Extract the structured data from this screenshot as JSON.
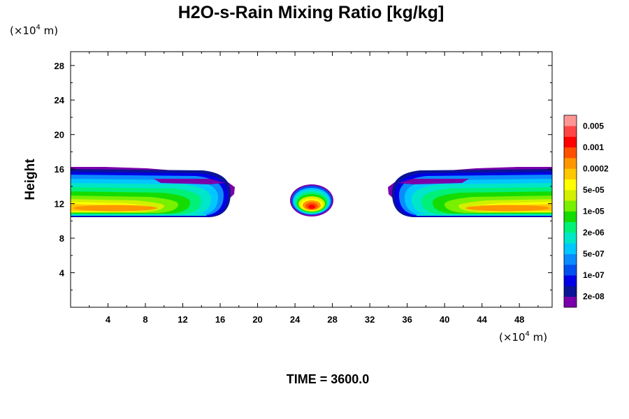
{
  "chart_data": {
    "type": "contour",
    "title": "H2O-s-Rain Mixing Ratio [kg/kg]",
    "ylabel": "Height",
    "xlabel": "",
    "x_unit": {
      "prefix": "(×10",
      "exp": "4",
      "suffix": " m)"
    },
    "y_unit": {
      "prefix": "(×10",
      "exp": "4",
      "suffix": " m)"
    },
    "xlim": [
      0,
      51.5
    ],
    "ylim": [
      0,
      29.6
    ],
    "xticks": [
      4,
      8,
      12,
      16,
      20,
      24,
      28,
      32,
      36,
      40,
      44,
      48
    ],
    "yticks": [
      4,
      8,
      12,
      16,
      20,
      24,
      28
    ],
    "xtick_labels": [
      "4",
      "8",
      "12",
      "16",
      "20",
      "24",
      "28",
      "32",
      "36",
      "40",
      "44",
      "48"
    ],
    "ytick_labels": [
      "4",
      "8",
      "12",
      "16",
      "20",
      "24",
      "28"
    ],
    "colorbar": {
      "colors": [
        "#7a00aa",
        "#0a1496",
        "#0000e6",
        "#0050f0",
        "#0a8cff",
        "#00c8ff",
        "#00e6c8",
        "#00f078",
        "#14dc00",
        "#78f000",
        "#d2f000",
        "#ffff00",
        "#ffc800",
        "#ff9600",
        "#ff5000",
        "#ff0000",
        "#ff4646",
        "#ff9696"
      ],
      "labels": [
        "2e-08",
        "1e-07",
        "5e-07",
        "2e-06",
        "1e-05",
        "5e-05",
        "0.0002",
        "0.001",
        "0.005"
      ]
    },
    "features": [
      {
        "name": "left-rain-band",
        "x_range": [
          0,
          17.5
        ],
        "y_range": [
          10.5,
          16.3
        ],
        "core": [
          6,
          11.3
        ]
      },
      {
        "name": "center-rain-cell",
        "x_range": [
          23.5,
          27.5
        ],
        "y_range": [
          10.5,
          14.2
        ],
        "core": [
          25.6,
          11.9
        ]
      },
      {
        "name": "right-rain-band",
        "x_range": [
          34,
          51.5
        ],
        "y_range": [
          10.5,
          16.3
        ],
        "core": [
          45.5,
          11.3
        ]
      }
    ]
  },
  "footer": {
    "label": "TIME = 3600.0"
  }
}
